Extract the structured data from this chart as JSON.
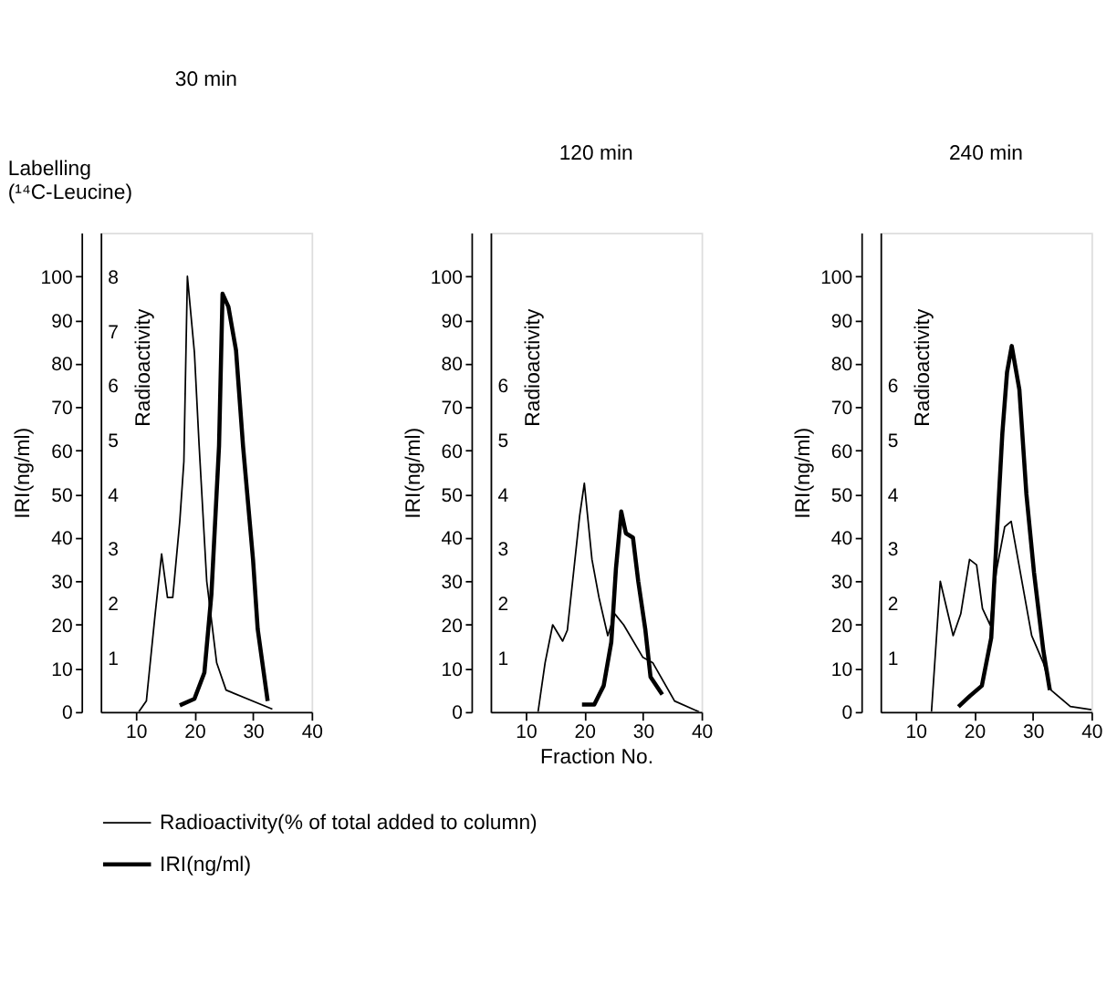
{
  "chart_data": [
    {
      "type": "line",
      "title": "30 min",
      "ylabel": "IRI(ng/ml)",
      "y2label": "Radioactivity",
      "annotations": [
        "Labelling\n(¹⁴C-Leucine)"
      ],
      "xlim": [
        4,
        40
      ],
      "xticks": [
        10,
        20,
        30,
        40
      ],
      "ylim": [
        0,
        110
      ],
      "yticks": [
        0,
        10,
        20,
        30,
        40,
        50,
        60,
        70,
        80,
        90,
        100
      ],
      "y2lim": [
        0,
        8.8
      ],
      "y2ticks": [
        1,
        2,
        3,
        4,
        5,
        6,
        7,
        8
      ],
      "grid": false,
      "legend": "bottom",
      "marker": "none",
      "line_style": "solid",
      "series": [
        {
          "name": "Radioactivity(% of total added to column)",
          "color": "#000000",
          "axis": "y2",
          "x": [
            10.5,
            11.8,
            13.3,
            14.4,
            15.4,
            16.3,
            17.5,
            18.2,
            18.8,
            20,
            20.8,
            22.1,
            23.8,
            25.4,
            33.3
          ],
          "values": [
            0,
            0.2,
            1.8,
            2.9,
            2.1,
            2.1,
            3.5,
            4.6,
            8.0,
            6.6,
            4.9,
            2.4,
            0.9,
            0.4,
            0.05
          ]
        },
        {
          "name": "IRI(ng/ml)",
          "color": "#000000",
          "axis": "y",
          "x": [
            17.5,
            20,
            21.7,
            22.9,
            24.2,
            24.8,
            25.8,
            27.1,
            28.3,
            30,
            30.8,
            32.5
          ],
          "values": [
            1.5,
            3,
            9,
            27,
            61,
            96,
            93,
            83,
            61,
            35,
            19,
            2.5
          ]
        }
      ]
    },
    {
      "type": "line",
      "title": "120 min",
      "xlabel": "Fraction No.",
      "ylabel": "IRI(ng/ml)",
      "y2label": "Radioactivity",
      "xlim": [
        4,
        40
      ],
      "xticks": [
        10,
        20,
        30,
        40
      ],
      "ylim": [
        0,
        110
      ],
      "yticks": [
        0,
        10,
        20,
        30,
        40,
        50,
        60,
        70,
        80,
        90,
        100
      ],
      "y2lim": [
        0,
        8.8
      ],
      "y2ticks": [
        1,
        2,
        3,
        4,
        5,
        6
      ],
      "grid": false,
      "marker": "none",
      "line_style": "solid",
      "series": [
        {
          "color": "#000000",
          "axis": "y2",
          "x": [
            12.1,
            13.3,
            14.6,
            16.3,
            17.1,
            19.2,
            20,
            21.3,
            22.5,
            24,
            25.2,
            26.7,
            30,
            31.7,
            35.4,
            39.6
          ],
          "values": [
            0,
            0.9,
            1.6,
            1.3,
            1.5,
            3.6,
            4.2,
            2.8,
            2.1,
            1.4,
            1.8,
            1.6,
            1.0,
            0.9,
            0.2,
            0
          ]
        },
        {
          "color": "#000000",
          "axis": "y",
          "x": [
            19.6,
            21.7,
            23.3,
            24.6,
            25.4,
            26.3,
            27.1,
            28.3,
            29.2,
            30.4,
            31.3,
            33.3
          ],
          "values": [
            1.7,
            1.7,
            6,
            16,
            33,
            46,
            41,
            40,
            30,
            19,
            8,
            4
          ]
        }
      ]
    },
    {
      "type": "line",
      "title": "240 min",
      "ylabel": "IRI(ng/ml)",
      "y2label": "Radioactivity",
      "xlim": [
        4,
        40
      ],
      "xticks": [
        10,
        20,
        30,
        40
      ],
      "ylim": [
        0,
        110
      ],
      "yticks": [
        0,
        10,
        20,
        30,
        40,
        50,
        60,
        70,
        80,
        90,
        100
      ],
      "y2lim": [
        0,
        8.8
      ],
      "y2ticks": [
        1,
        2,
        3,
        4,
        5,
        6
      ],
      "grid": false,
      "marker": "none",
      "line_style": "solid",
      "series": [
        {
          "color": "#000000",
          "axis": "y2",
          "x": [
            12.7,
            14.2,
            16.4,
            17.7,
            19.2,
            20.4,
            21.4,
            22.7,
            23.8,
            25.2,
            26.3,
            27.3,
            29.8,
            31.8,
            33.1,
            36.4,
            40
          ],
          "values": [
            0,
            2.4,
            1.4,
            1.8,
            2.8,
            2.7,
            1.9,
            1.6,
            2.6,
            3.4,
            3.5,
            2.9,
            1.4,
            0.9,
            0.4,
            0.1,
            0.04
          ]
        },
        {
          "color": "#000000",
          "axis": "y",
          "x": [
            17.3,
            19.3,
            21.3,
            22.9,
            23.9,
            24.8,
            25.6,
            26.4,
            27.7,
            28.9,
            30.2,
            31.8,
            32.9
          ],
          "values": [
            1.2,
            3.7,
            6,
            17,
            42,
            64,
            78,
            84,
            74,
            50,
            32,
            14,
            5
          ]
        }
      ]
    }
  ]
}
